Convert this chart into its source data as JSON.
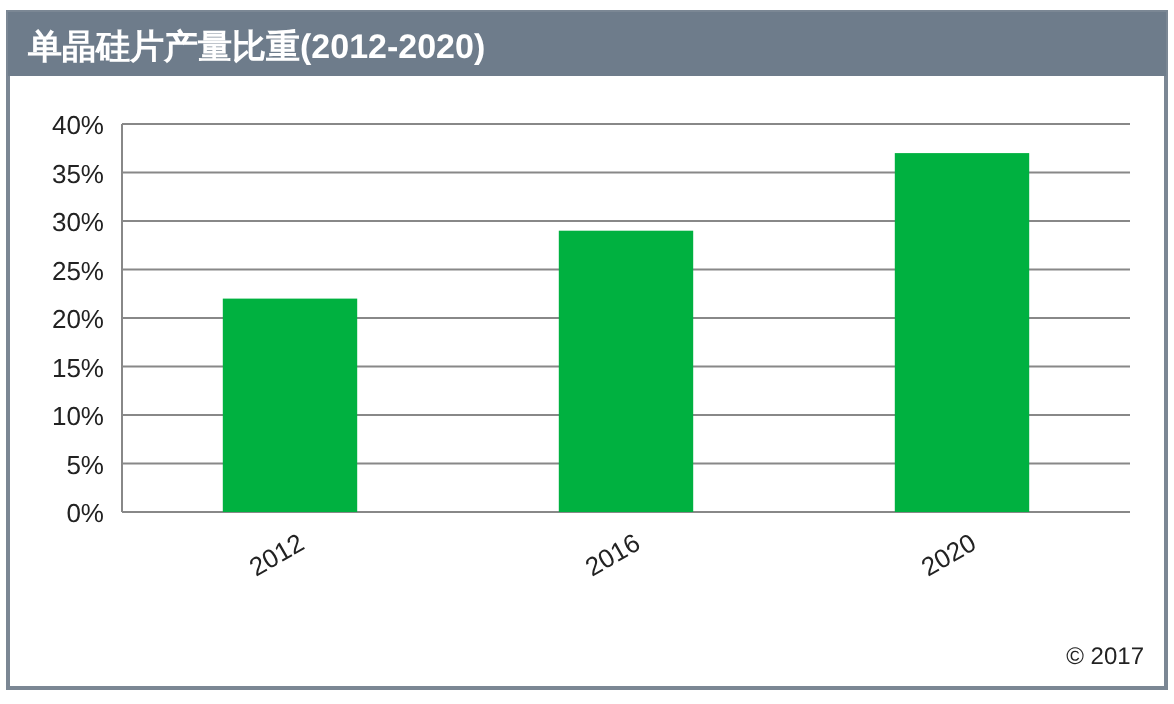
{
  "chart_data": {
    "type": "bar",
    "title": "单晶硅片产量比重(2012-2020)",
    "categories": [
      "2012",
      "2016",
      "2020"
    ],
    "values": [
      22,
      29,
      37
    ],
    "color": "#00b140",
    "ylim": [
      0,
      40
    ],
    "yticks": [
      {
        "value": 0,
        "label": "0%"
      },
      {
        "value": 5,
        "label": "5%"
      },
      {
        "value": 10,
        "label": "10%"
      },
      {
        "value": 15,
        "label": "15%"
      },
      {
        "value": 20,
        "label": "20%"
      },
      {
        "value": 25,
        "label": "25%"
      },
      {
        "value": 30,
        "label": "30%"
      },
      {
        "value": 35,
        "label": "35%"
      },
      {
        "value": 40,
        "label": "40%"
      }
    ],
    "grid": "y",
    "annotations": [
      "© 2017"
    ]
  }
}
